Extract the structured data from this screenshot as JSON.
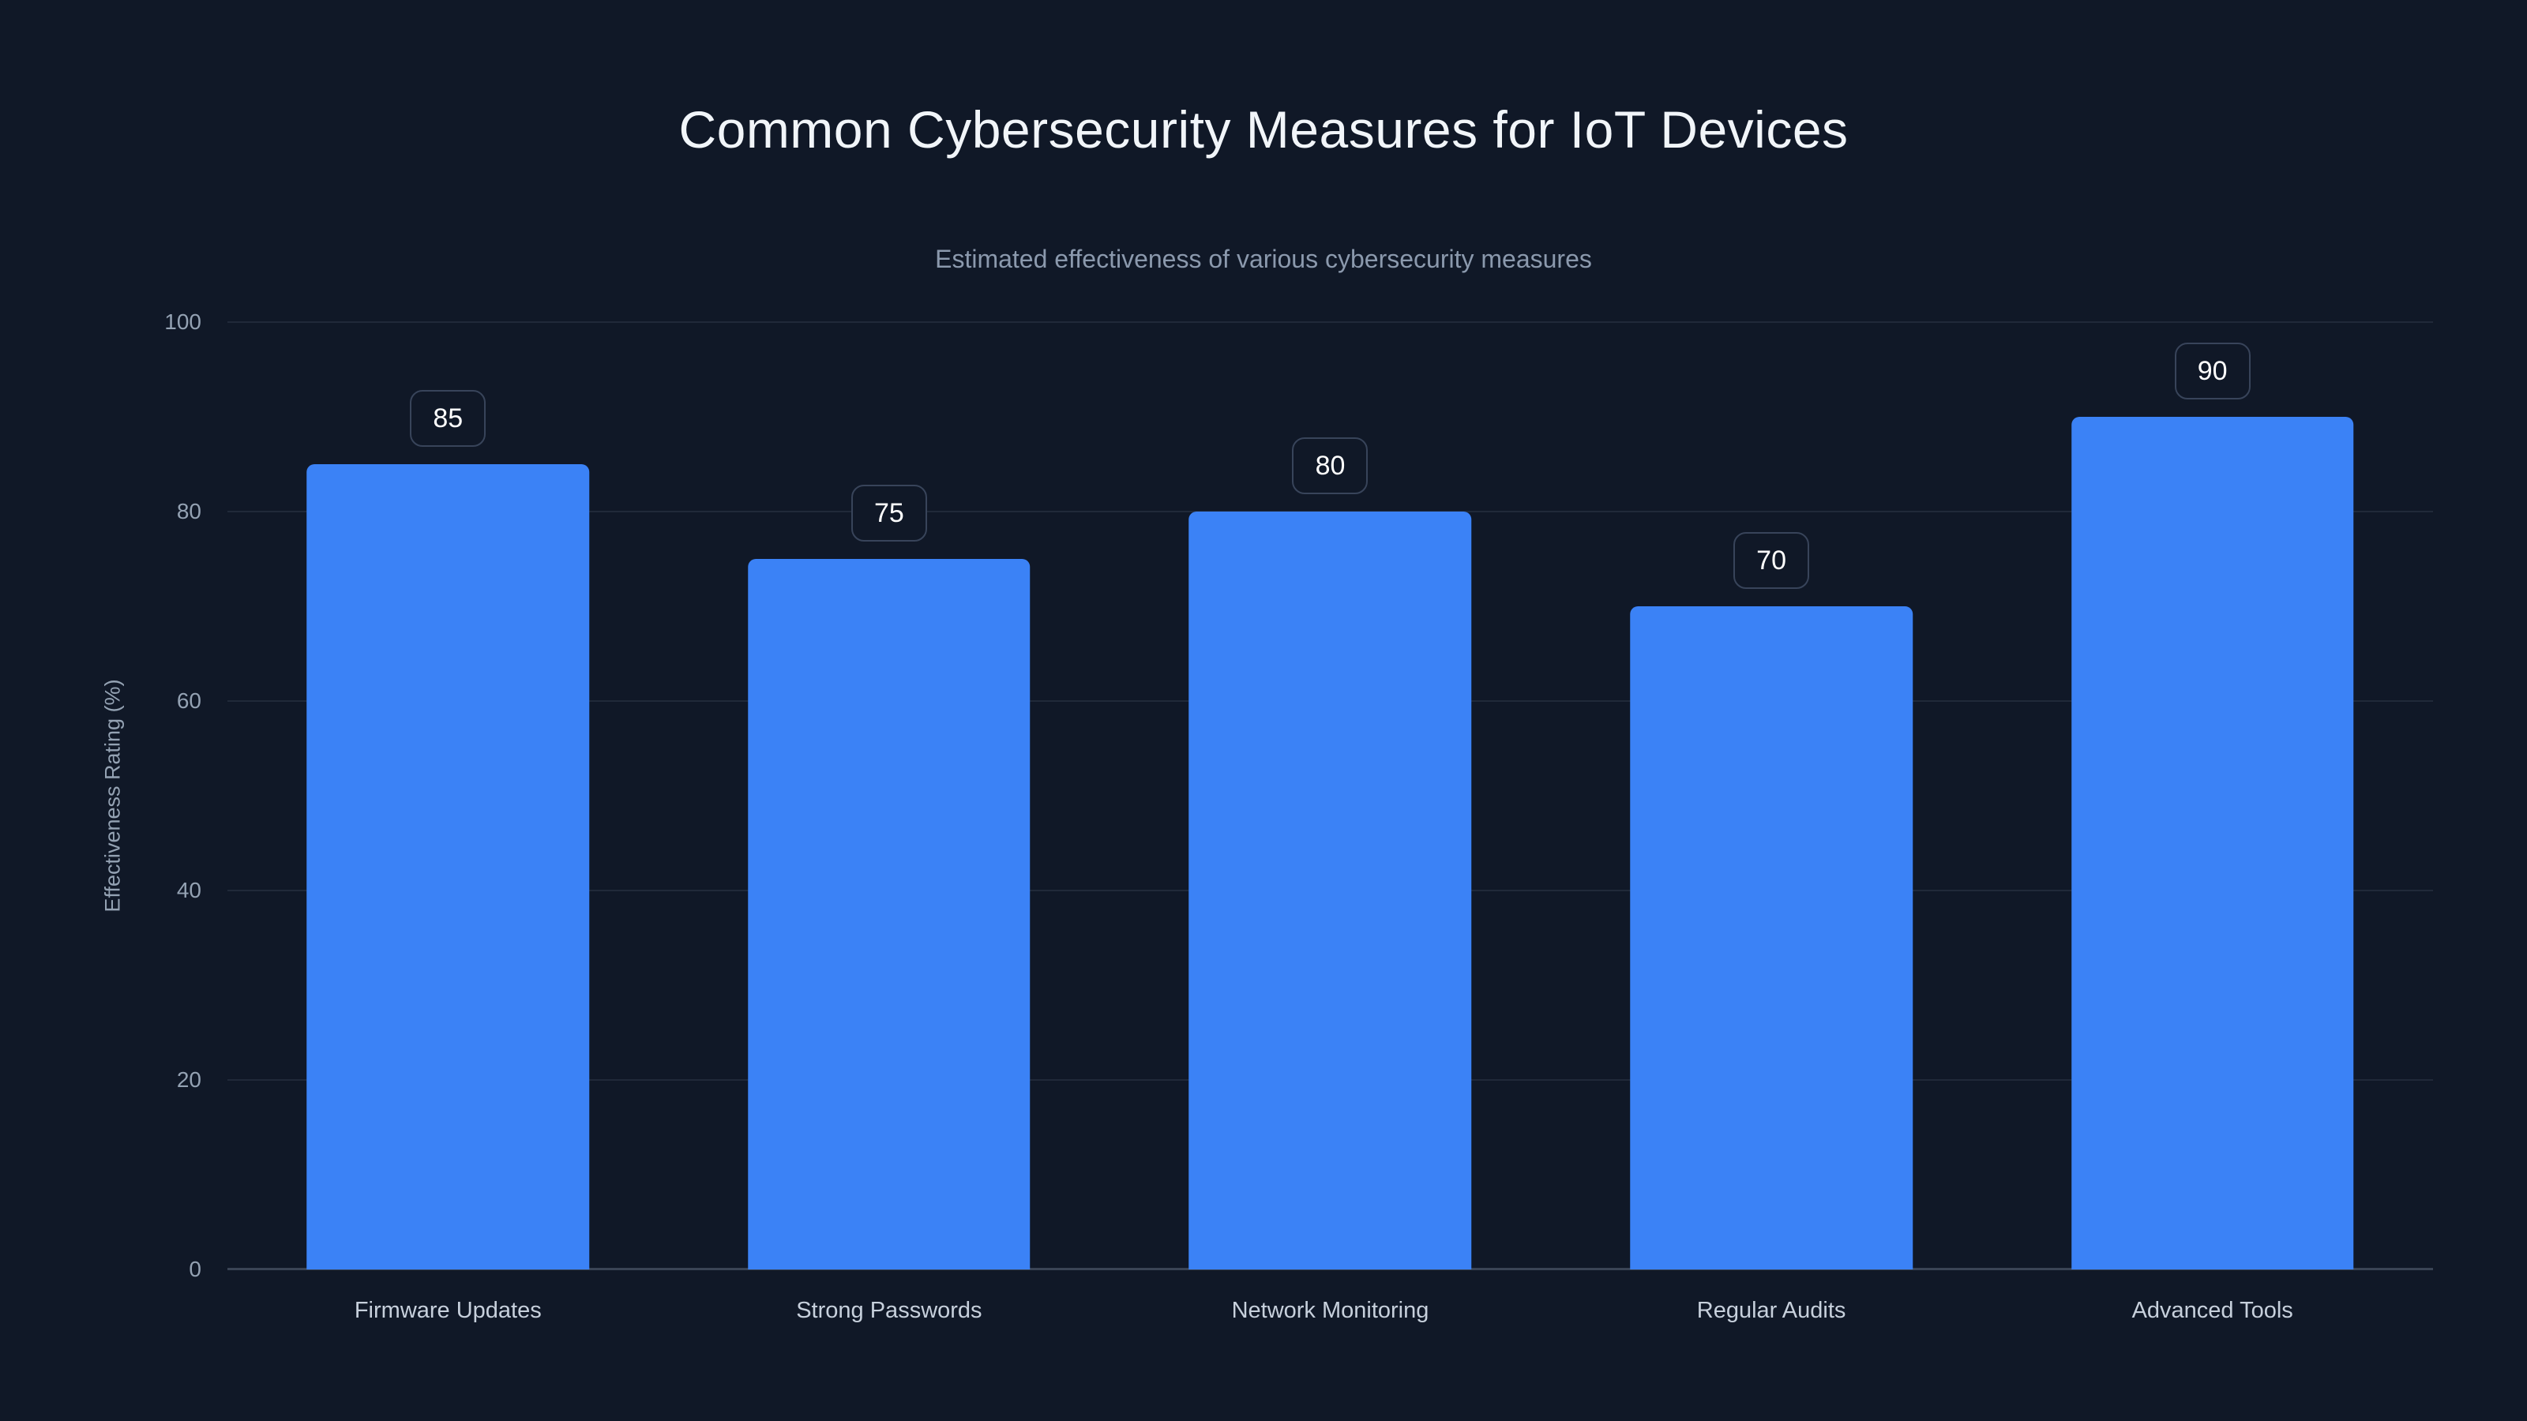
{
  "header": {
    "title": "Common Cybersecurity Measures for IoT Devices",
    "subtitle": "Estimated effectiveness of various cybersecurity measures"
  },
  "chart_data": {
    "type": "bar",
    "title": "Common Cybersecurity Measures for IoT Devices",
    "subtitle": "Estimated effectiveness of various cybersecurity measures",
    "categories": [
      "Firmware Updates",
      "Strong Passwords",
      "Network Monitoring",
      "Regular Audits",
      "Advanced Tools"
    ],
    "values": [
      85,
      75,
      80,
      70,
      90
    ],
    "value_labels": [
      "85",
      "75",
      "80",
      "70",
      "90"
    ],
    "xlabel": "",
    "ylabel": "Effectiveness Rating (%)",
    "ylim": [
      0,
      100
    ],
    "yticks": [
      0,
      20,
      40,
      60,
      80,
      100
    ],
    "grid": true,
    "legend": false,
    "colors": {
      "background": "#101827",
      "bar": "#3b82f6",
      "title_text": "#f1f5f9",
      "subtitle_text": "#8b99ad",
      "axis_text": "#94a2b3",
      "category_text": "#c7d0dc",
      "gridline": "rgba(148,163,184,0.13)",
      "badge_border": "#38445a",
      "badge_text": "#ffffff"
    }
  }
}
